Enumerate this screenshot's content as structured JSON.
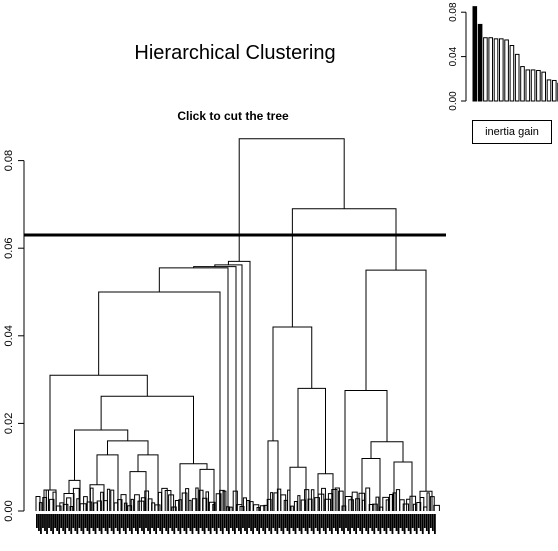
{
  "title": "Hierarchical Clustering",
  "chart_data": [
    {
      "type": "dendrogram",
      "subtitle": "Click to cut the tree",
      "ylim": [
        0,
        0.089
      ],
      "yticks": [
        "0.00",
        "0.02",
        "0.04",
        "0.06",
        "0.08"
      ],
      "cut_height": 0.063,
      "n_leaves": 198,
      "leaf_labels_legible": false,
      "nodes": [
        {
          "id": "R",
          "h": 0.085,
          "l": "L1",
          "r": "R1"
        },
        {
          "id": "R1",
          "h": 0.069,
          "l": "M1",
          "r": "N1"
        },
        {
          "id": "M1",
          "h": 0.042,
          "l": "Ma",
          "r": "Mb"
        },
        {
          "id": "Mb",
          "h": 0.028,
          "l": "Mc",
          "r": "Md"
        },
        {
          "id": "Ma",
          "h": 0.016,
          "l": "lf:268",
          "r": "lf:278"
        },
        {
          "id": "Mc",
          "h": 0.01,
          "l": "lf:290",
          "r": "lf:306"
        },
        {
          "id": "Md",
          "h": 0.0085,
          "l": "lf:318",
          "r": "lf:333"
        },
        {
          "id": "N1",
          "h": 0.055,
          "l": "Na",
          "r": "Nb"
        },
        {
          "id": "Na",
          "h": 0.0275,
          "l": "lf:345",
          "r": "Nc"
        },
        {
          "id": "Nc",
          "h": 0.0158,
          "l": "Nd",
          "r": "Ne"
        },
        {
          "id": "Nd",
          "h": 0.012,
          "l": "lf:362",
          "r": "lf:380"
        },
        {
          "id": "Ne",
          "h": 0.0112,
          "l": "lf:394",
          "r": "lf:412"
        },
        {
          "id": "Nb",
          "h": 0.0045,
          "l": "lf:420",
          "r": "lf:432"
        },
        {
          "id": "L1",
          "h": 0.057,
          "l": "L2",
          "r": "lf:250"
        },
        {
          "id": "L2",
          "h": 0.0562,
          "l": "L3",
          "r": "lf:242"
        },
        {
          "id": "L3",
          "h": 0.0558,
          "l": "L4",
          "r": "lf:236"
        },
        {
          "id": "L4",
          "h": 0.0555,
          "l": "L5",
          "r": "lf:228"
        },
        {
          "id": "L5",
          "h": 0.05,
          "l": "A",
          "r": "lf:220"
        },
        {
          "id": "A",
          "h": 0.031,
          "l": "Ab",
          "r": "B"
        },
        {
          "id": "Ab",
          "h": 0.0048,
          "l": "lf:44",
          "r": "lf:56"
        },
        {
          "id": "B",
          "h": 0.0262,
          "l": "C",
          "r": "Bs"
        },
        {
          "id": "Bs",
          "h": 0.0108,
          "l": "lf:180",
          "r": "Bt"
        },
        {
          "id": "Bt",
          "h": 0.0095,
          "l": "lf:200",
          "r": "lf:214"
        },
        {
          "id": "C",
          "h": 0.0185,
          "l": "C1",
          "r": "D"
        },
        {
          "id": "C1",
          "h": 0.007,
          "l": "C2",
          "r": "lf:80"
        },
        {
          "id": "C2",
          "h": 0.004,
          "l": "lf:64",
          "r": "lf:74"
        },
        {
          "id": "D",
          "h": 0.016,
          "l": "E",
          "r": "F"
        },
        {
          "id": "E",
          "h": 0.0128,
          "l": "E1",
          "r": "lf:118"
        },
        {
          "id": "E1",
          "h": 0.006,
          "l": "lf:90",
          "r": "lf:104"
        },
        {
          "id": "F",
          "h": 0.0128,
          "l": "F1",
          "r": "lf:158"
        },
        {
          "id": "F1",
          "h": 0.009,
          "l": "lf:130",
          "r": "lf:146"
        }
      ]
    },
    {
      "type": "bar",
      "ylim": [
        0,
        0.09
      ],
      "yticks": [
        "0.00",
        "0.04",
        "0.08"
      ],
      "values": [
        0.085,
        0.069,
        0.057,
        0.057,
        0.056,
        0.056,
        0.055,
        0.05,
        0.042,
        0.031,
        0.028,
        0.028,
        0.0275,
        0.026,
        0.019,
        0.0185,
        0.016
      ],
      "highlighted_count": 2,
      "legend": "inertia gain"
    }
  ]
}
